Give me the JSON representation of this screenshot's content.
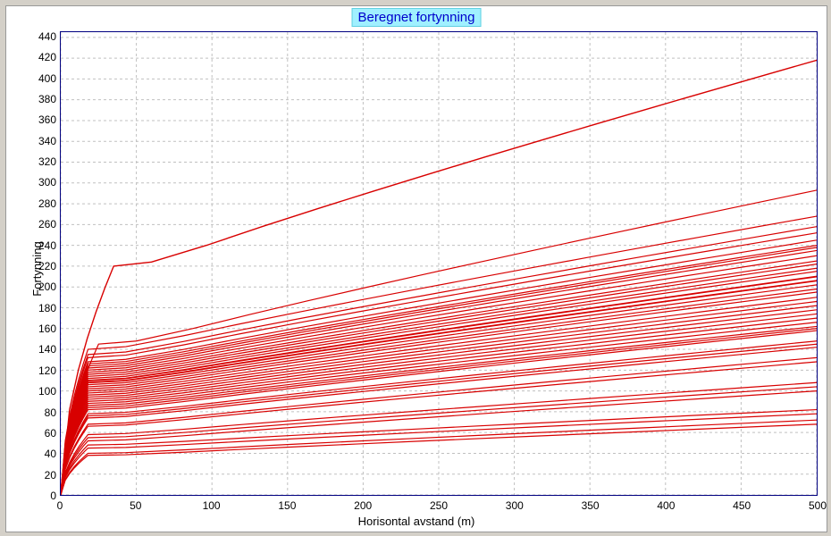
{
  "chart": {
    "type": "line",
    "title": "Beregnet fortynning",
    "xlabel": "Horisontal avstand (m)",
    "ylabel": "Fortynning",
    "title_bg": "#a0f0ff",
    "title_fg": "#0000cc",
    "title_fontsize": 15,
    "label_fontsize": 13,
    "tick_fontsize": 12,
    "background": "#ffffff",
    "page_background": "#d4d0c8",
    "grid_color": "#c0c0c0",
    "grid_dash": "3,3",
    "plot_border_color": "#000080",
    "line_color": "#d80000",
    "line_width": 1.2,
    "xlim": [
      0,
      500
    ],
    "ylim": [
      0,
      445
    ],
    "xticks": [
      0,
      50,
      100,
      150,
      200,
      250,
      300,
      350,
      400,
      450,
      500
    ],
    "yticks": [
      0,
      20,
      40,
      60,
      80,
      100,
      120,
      140,
      160,
      180,
      200,
      220,
      240,
      260,
      280,
      300,
      320,
      340,
      360,
      380,
      400,
      420,
      440
    ],
    "series_initial_rise_x": 35,
    "series_initial_rise_x2": 25,
    "series_initial_rise_x3": 18,
    "series_plateau_len": 25,
    "series": [
      {
        "rise_to": 220,
        "end": 418,
        "rise_x": 35,
        "width": 1.4
      },
      {
        "rise_to": 145,
        "end": 293,
        "rise_x": 25
      },
      {
        "rise_to": 140,
        "end": 268
      },
      {
        "rise_to": 135,
        "end": 258
      },
      {
        "rise_to": 132,
        "end": 252
      },
      {
        "rise_to": 128,
        "end": 245
      },
      {
        "rise_to": 126,
        "end": 240
      },
      {
        "rise_to": 124,
        "end": 238
      },
      {
        "rise_to": 122,
        "end": 235
      },
      {
        "rise_to": 120,
        "end": 230
      },
      {
        "rise_to": 118,
        "end": 225
      },
      {
        "rise_to": 116,
        "end": 222
      },
      {
        "rise_to": 114,
        "end": 218
      },
      {
        "rise_to": 112,
        "end": 215
      },
      {
        "rise_to": 110,
        "end": 210,
        "width": 1.8
      },
      {
        "rise_to": 108,
        "end": 206,
        "width": 1.8
      },
      {
        "rise_to": 106,
        "end": 202
      },
      {
        "rise_to": 104,
        "end": 198
      },
      {
        "rise_to": 102,
        "end": 195
      },
      {
        "rise_to": 100,
        "end": 190
      },
      {
        "rise_to": 98,
        "end": 186
      },
      {
        "rise_to": 96,
        "end": 182
      },
      {
        "rise_to": 94,
        "end": 178
      },
      {
        "rise_to": 92,
        "end": 174
      },
      {
        "rise_to": 90,
        "end": 170
      },
      {
        "rise_to": 88,
        "end": 166
      },
      {
        "rise_to": 86,
        "end": 162
      },
      {
        "rise_to": 84,
        "end": 160
      },
      {
        "rise_to": 82,
        "end": 158
      },
      {
        "rise_to": 78,
        "end": 148
      },
      {
        "rise_to": 76,
        "end": 145
      },
      {
        "rise_to": 74,
        "end": 142
      },
      {
        "rise_to": 68,
        "end": 132
      },
      {
        "rise_to": 66,
        "end": 128
      },
      {
        "rise_to": 58,
        "end": 108
      },
      {
        "rise_to": 55,
        "end": 104
      },
      {
        "rise_to": 52,
        "end": 100
      },
      {
        "rise_to": 48,
        "end": 82
      },
      {
        "rise_to": 45,
        "end": 78
      },
      {
        "rise_to": 40,
        "end": 72
      },
      {
        "rise_to": 38,
        "end": 68
      }
    ]
  }
}
